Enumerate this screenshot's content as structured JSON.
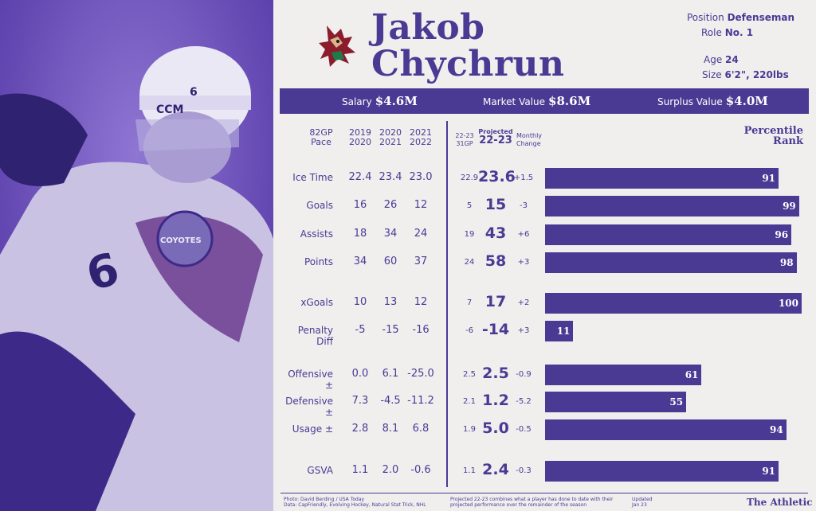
{
  "player": {
    "first_name": "Jakob",
    "last_name": "Chychrun"
  },
  "info": {
    "position_label": "Position",
    "position": "Defenseman",
    "role_label": "Role",
    "role": "No. 1",
    "age_label": "Age",
    "age": "24",
    "size_label": "Size",
    "size": "6'2\", 220lbs"
  },
  "summary": {
    "salary_label": "Salary",
    "salary": "$4.6M",
    "market_label": "Market Value",
    "market": "$8.6M",
    "surplus_label": "Surplus Value",
    "surplus": "$4.0M"
  },
  "headers": {
    "pace": "82GP\nPace",
    "y1": "2019\n2020",
    "y2": "2020\n2021",
    "y3": "2021\n2022",
    "cur": "22-23\n31GP",
    "proj_small": "Projected",
    "proj": "22-23",
    "change": "Monthly\nChange",
    "percentile": "Percentile\nRank"
  },
  "chart_data": {
    "type": "bar",
    "categories": [
      "Ice Time",
      "Goals",
      "Assists",
      "Points",
      "xGoals",
      "Penalty Diff",
      "Offensive ±",
      "Defensive ±",
      "Usage ±",
      "GSVA"
    ],
    "values": [
      91,
      99,
      96,
      98,
      100,
      11,
      61,
      55,
      94,
      91
    ],
    "xlim": [
      0,
      100
    ],
    "rows": [
      {
        "label": "Ice Time",
        "y1": "22.4",
        "y2": "23.4",
        "y3": "23.0",
        "cur": "22.9",
        "proj": "23.6",
        "chg": "+1.5",
        "pct": 91
      },
      {
        "label": "Goals",
        "y1": "16",
        "y2": "26",
        "y3": "12",
        "cur": "5",
        "proj": "15",
        "chg": "-3",
        "pct": 99
      },
      {
        "label": "Assists",
        "y1": "18",
        "y2": "34",
        "y3": "24",
        "cur": "19",
        "proj": "43",
        "chg": "+6",
        "pct": 96
      },
      {
        "label": "Points",
        "y1": "34",
        "y2": "60",
        "y3": "37",
        "cur": "24",
        "proj": "58",
        "chg": "+3",
        "pct": 98
      },
      {
        "label": "xGoals",
        "y1": "10",
        "y2": "13",
        "y3": "12",
        "cur": "7",
        "proj": "17",
        "chg": "+2",
        "pct": 100
      },
      {
        "label": "Penalty Diff",
        "y1": "-5",
        "y2": "-15",
        "y3": "-16",
        "cur": "-6",
        "proj": "-14",
        "chg": "+3",
        "pct": 11
      },
      {
        "label": "Offensive ±",
        "y1": "0.0",
        "y2": "6.1",
        "y3": "-25.0",
        "cur": "2.5",
        "proj": "2.5",
        "chg": "-0.9",
        "pct": 61
      },
      {
        "label": "Defensive ±",
        "y1": "7.3",
        "y2": "-4.5",
        "y3": "-11.2",
        "cur": "2.1",
        "proj": "1.2",
        "chg": "-5.2",
        "pct": 55
      },
      {
        "label": "Usage ±",
        "y1": "2.8",
        "y2": "8.1",
        "y3": "6.8",
        "cur": "1.9",
        "proj": "5.0",
        "chg": "-0.5",
        "pct": 94
      },
      {
        "label": "GSVA",
        "y1": "1.1",
        "y2": "2.0",
        "y3": "-0.6",
        "cur": "1.1",
        "proj": "2.4",
        "chg": "-0.3",
        "pct": 91
      }
    ]
  },
  "footer": {
    "photo": "Photo: David Berding / USA Today",
    "data": "Data: CapFriendly, Evolving Hockey, Natural Stat Trick, NHL",
    "note1": "Projected 22-23 combines what a player has done to date with their",
    "note2": "projected performance over the remainder of the season",
    "updated_label": "Updated",
    "updated": "Jan 23",
    "brand": "The Athletic"
  },
  "colors": {
    "primary": "#4b3a93",
    "background": "#f0efee",
    "photo_tint": "#5a3aa8"
  },
  "photo": {
    "jersey_number": "6",
    "helmet_brand": "CCM",
    "crest_text": "COYOTES"
  }
}
